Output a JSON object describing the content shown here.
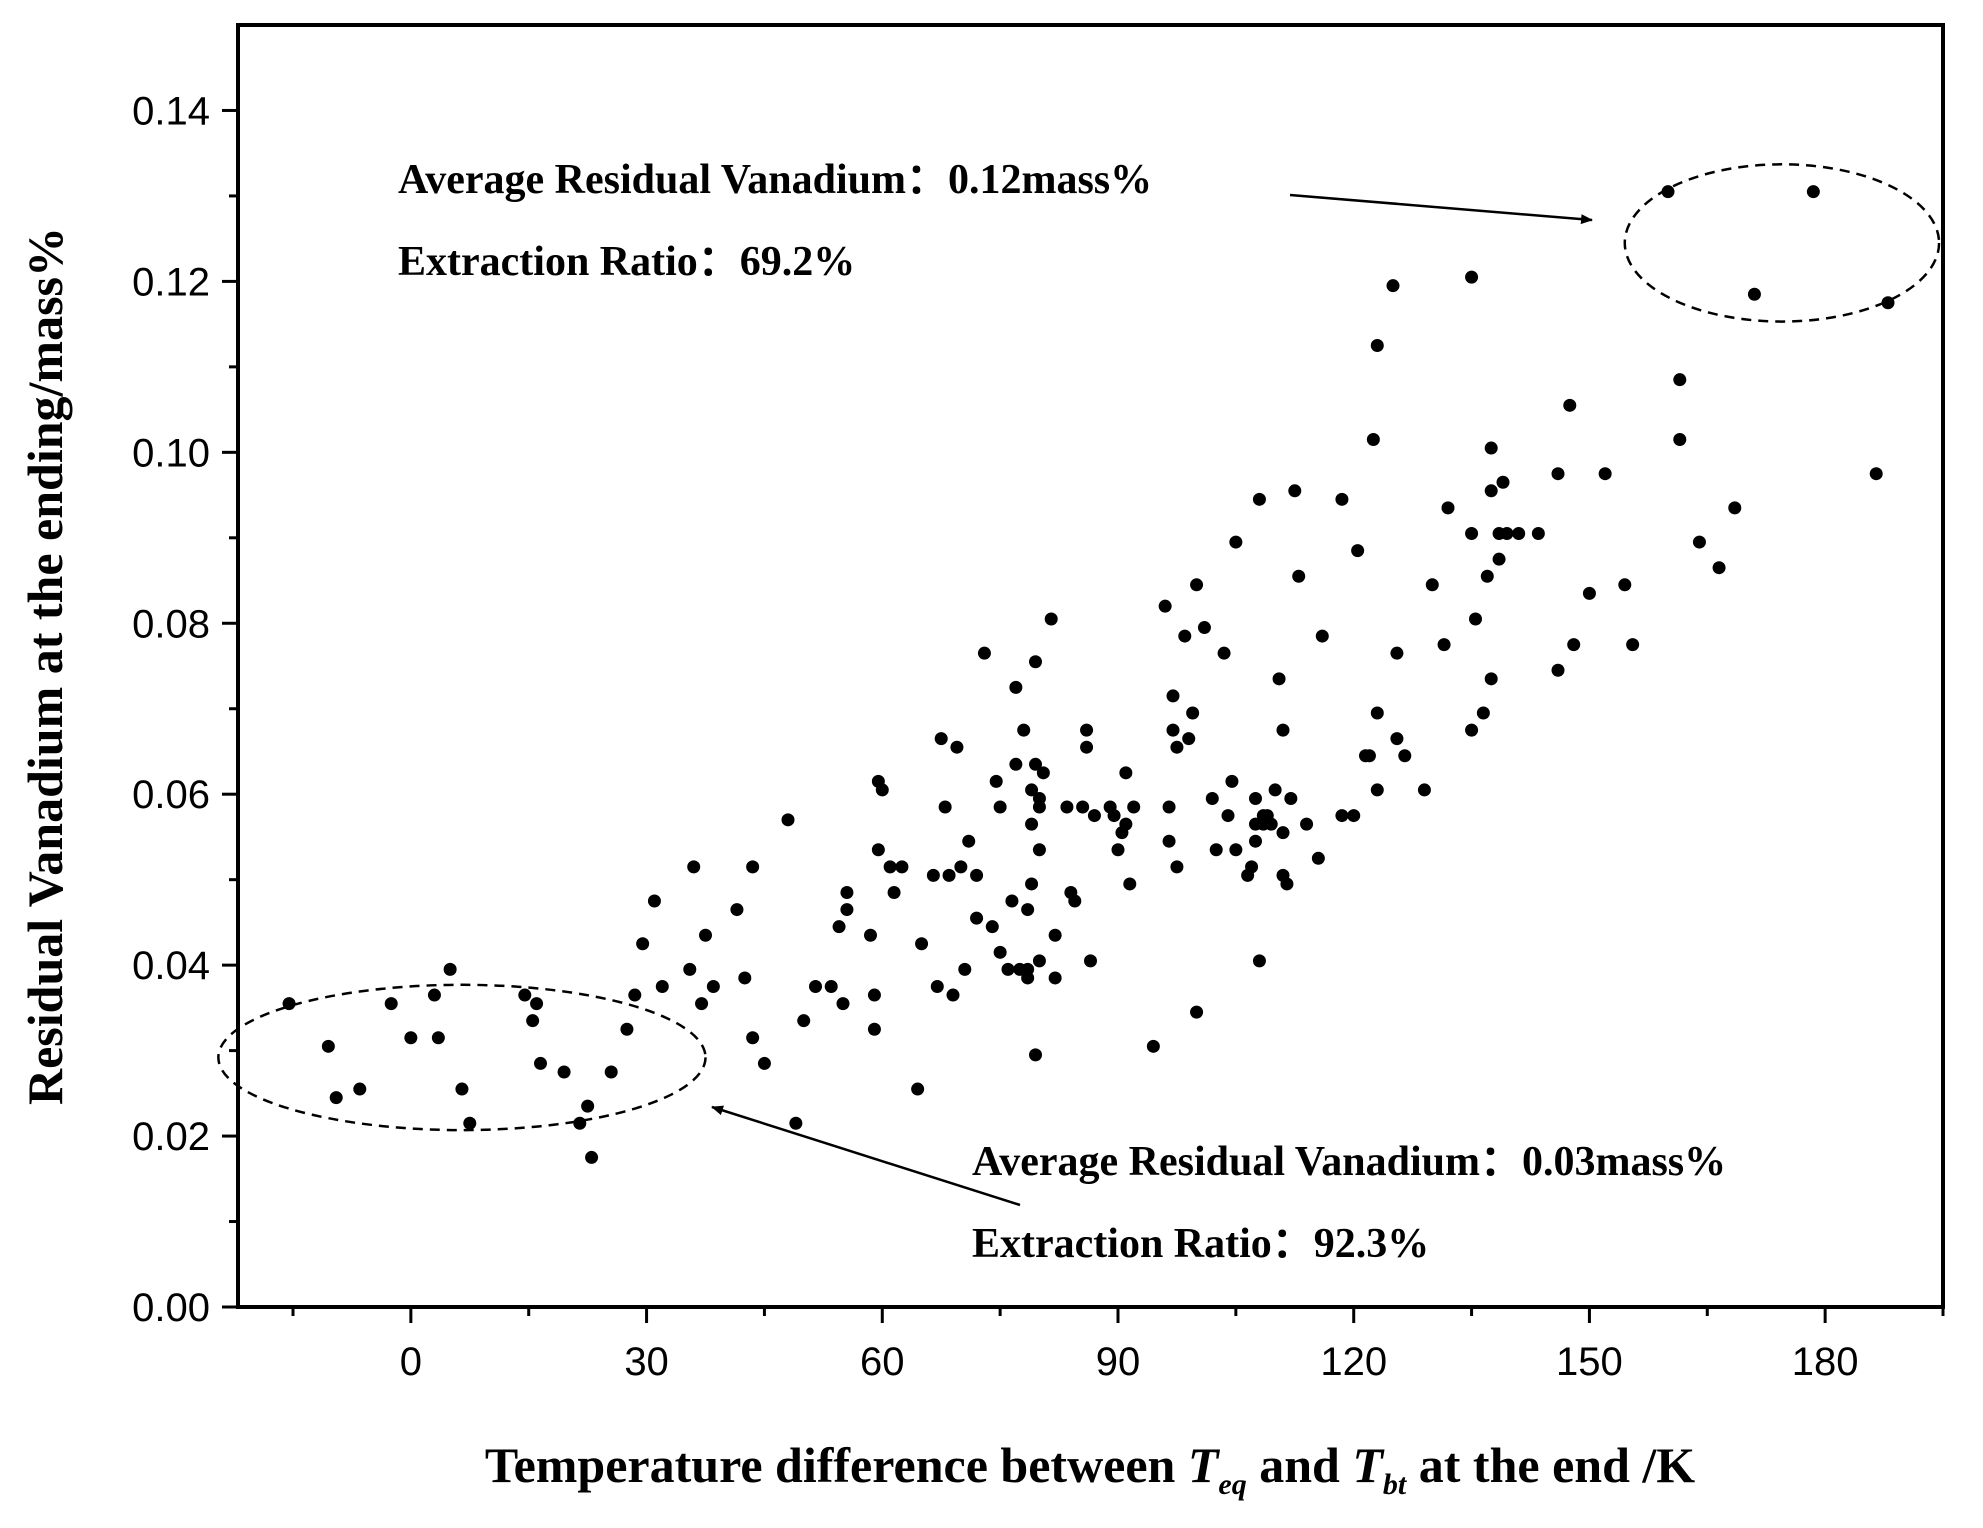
{
  "chart_data": {
    "type": "scatter",
    "title": "",
    "xlabel": {
      "prefix": "Temperature difference between ",
      "var1": "T",
      "sub1": "eq",
      "middle": " and ",
      "var2": "T",
      "sub2": "bt",
      "suffix": " at the end /K"
    },
    "ylabel": "Residual Vanadium at the ending/mass%",
    "xlim": [
      -22,
      195
    ],
    "ylim": [
      0,
      0.15
    ],
    "xticks": [
      0,
      30,
      60,
      90,
      120,
      150,
      180
    ],
    "yticks": [
      0.0,
      0.02,
      0.04,
      0.06,
      0.08,
      0.1,
      0.12,
      0.14
    ],
    "xtick_labels": [
      "0",
      "30",
      "60",
      "90",
      "120",
      "150",
      "180"
    ],
    "ytick_labels": [
      "0.00",
      "0.02",
      "0.04",
      "0.06",
      "0.08",
      "0.10",
      "0.12",
      "0.14"
    ],
    "grid": false,
    "series": [
      {
        "name": "data",
        "color": "#000000",
        "points": [
          [
            -15.5,
            0.0355
          ],
          [
            -10.5,
            0.0305
          ],
          [
            -9.5,
            0.0245
          ],
          [
            -6.5,
            0.0255
          ],
          [
            -2.5,
            0.0355
          ],
          [
            0,
            0.0315
          ],
          [
            3,
            0.0365
          ],
          [
            3.5,
            0.0315
          ],
          [
            5,
            0.0395
          ],
          [
            6.5,
            0.0255
          ],
          [
            7.5,
            0.0215
          ],
          [
            14.5,
            0.0365
          ],
          [
            15.5,
            0.0335
          ],
          [
            16,
            0.0355
          ],
          [
            16.5,
            0.0285
          ],
          [
            19.5,
            0.0275
          ],
          [
            21.5,
            0.0215
          ],
          [
            22.5,
            0.0235
          ],
          [
            23,
            0.0175
          ],
          [
            25.5,
            0.0275
          ],
          [
            27.5,
            0.0325
          ],
          [
            28.5,
            0.0365
          ],
          [
            29.5,
            0.0425
          ],
          [
            31,
            0.0475
          ],
          [
            32,
            0.0375
          ],
          [
            35.5,
            0.0395
          ],
          [
            36,
            0.0515
          ],
          [
            37,
            0.0355
          ],
          [
            37.5,
            0.0435
          ],
          [
            38.5,
            0.0375
          ],
          [
            41.5,
            0.0465
          ],
          [
            42.5,
            0.0385
          ],
          [
            43.5,
            0.0315
          ],
          [
            43.5,
            0.0515
          ],
          [
            45,
            0.0285
          ],
          [
            48,
            0.057
          ],
          [
            49,
            0.0215
          ],
          [
            50,
            0.0335
          ],
          [
            51.5,
            0.0375
          ],
          [
            53.5,
            0.0375
          ],
          [
            54.5,
            0.0445
          ],
          [
            55,
            0.0355
          ],
          [
            55.5,
            0.0485
          ],
          [
            55.5,
            0.0465
          ],
          [
            58.5,
            0.0435
          ],
          [
            59,
            0.0365
          ],
          [
            59,
            0.0325
          ],
          [
            59.5,
            0.0535
          ],
          [
            59.5,
            0.0615
          ],
          [
            60,
            0.0605
          ],
          [
            61,
            0.0515
          ],
          [
            61.5,
            0.0485
          ],
          [
            62.5,
            0.0515
          ],
          [
            64.5,
            0.0255
          ],
          [
            65,
            0.0425
          ],
          [
            66.5,
            0.0505
          ],
          [
            67,
            0.0375
          ],
          [
            67.5,
            0.0665
          ],
          [
            68,
            0.0585
          ],
          [
            68.5,
            0.0505
          ],
          [
            69,
            0.0365
          ],
          [
            69.5,
            0.0655
          ],
          [
            70,
            0.0515
          ],
          [
            70.5,
            0.0395
          ],
          [
            71,
            0.0545
          ],
          [
            72,
            0.0505
          ],
          [
            72,
            0.0455
          ],
          [
            73,
            0.0765
          ],
          [
            74,
            0.0445
          ],
          [
            74.5,
            0.0615
          ],
          [
            75,
            0.0415
          ],
          [
            75,
            0.0585
          ],
          [
            76,
            0.0395
          ],
          [
            76.5,
            0.0475
          ],
          [
            77,
            0.0725
          ],
          [
            77,
            0.0635
          ],
          [
            77.5,
            0.0395
          ],
          [
            78,
            0.0675
          ],
          [
            78.5,
            0.0385
          ],
          [
            78.5,
            0.0465
          ],
          [
            78.5,
            0.0395
          ],
          [
            79,
            0.0495
          ],
          [
            79,
            0.0605
          ],
          [
            79,
            0.0565
          ],
          [
            79.5,
            0.0295
          ],
          [
            79.5,
            0.0635
          ],
          [
            79.5,
            0.0755
          ],
          [
            80,
            0.0535
          ],
          [
            80,
            0.0585
          ],
          [
            80,
            0.0405
          ],
          [
            80,
            0.0595
          ],
          [
            80.5,
            0.0625
          ],
          [
            81.5,
            0.0805
          ],
          [
            82,
            0.0435
          ],
          [
            82,
            0.0385
          ],
          [
            83.5,
            0.0585
          ],
          [
            84,
            0.0485
          ],
          [
            84.5,
            0.0475
          ],
          [
            85.5,
            0.0585
          ],
          [
            86,
            0.0655
          ],
          [
            86,
            0.0675
          ],
          [
            86.5,
            0.0405
          ],
          [
            87,
            0.0575
          ],
          [
            89,
            0.0585
          ],
          [
            89.5,
            0.0575
          ],
          [
            90,
            0.0535
          ],
          [
            90.5,
            0.0555
          ],
          [
            91,
            0.0565
          ],
          [
            91,
            0.0625
          ],
          [
            91.5,
            0.0495
          ],
          [
            92,
            0.0585
          ],
          [
            94.5,
            0.0305
          ],
          [
            96,
            0.082
          ],
          [
            96.5,
            0.0585
          ],
          [
            96.5,
            0.0545
          ],
          [
            97,
            0.0715
          ],
          [
            97,
            0.0675
          ],
          [
            97.5,
            0.0515
          ],
          [
            97.5,
            0.0655
          ],
          [
            98.5,
            0.0785
          ],
          [
            99,
            0.0665
          ],
          [
            99.5,
            0.0695
          ],
          [
            100,
            0.0345
          ],
          [
            100,
            0.0845
          ],
          [
            101,
            0.0795
          ],
          [
            102,
            0.0595
          ],
          [
            102.5,
            0.0535
          ],
          [
            103.5,
            0.0765
          ],
          [
            104,
            0.0575
          ],
          [
            104.5,
            0.0615
          ],
          [
            105,
            0.0895
          ],
          [
            105,
            0.0535
          ],
          [
            106.5,
            0.0505
          ],
          [
            107,
            0.0515
          ],
          [
            107.5,
            0.0565
          ],
          [
            107.5,
            0.0545
          ],
          [
            107.5,
            0.0595
          ],
          [
            108,
            0.0945
          ],
          [
            108,
            0.0405
          ],
          [
            108.5,
            0.0565
          ],
          [
            108.5,
            0.0575
          ],
          [
            109,
            0.0575
          ],
          [
            109.5,
            0.0565
          ],
          [
            110,
            0.0605
          ],
          [
            110.5,
            0.0735
          ],
          [
            111,
            0.0555
          ],
          [
            111,
            0.0675
          ],
          [
            111,
            0.0505
          ],
          [
            111.5,
            0.0495
          ],
          [
            112,
            0.0595
          ],
          [
            112.5,
            0.0955
          ],
          [
            113,
            0.0855
          ],
          [
            114,
            0.0565
          ],
          [
            115.5,
            0.0525
          ],
          [
            116,
            0.0785
          ],
          [
            118.5,
            0.0945
          ],
          [
            118.5,
            0.0575
          ],
          [
            120,
            0.0575
          ],
          [
            120.5,
            0.0885
          ],
          [
            121.5,
            0.0645
          ],
          [
            122,
            0.0645
          ],
          [
            122.5,
            0.1015
          ],
          [
            123,
            0.1125
          ],
          [
            123,
            0.0605
          ],
          [
            123,
            0.0695
          ],
          [
            125,
            0.1195
          ],
          [
            125.5,
            0.0665
          ],
          [
            125.5,
            0.0765
          ],
          [
            126.5,
            0.0645
          ],
          [
            129,
            0.0605
          ],
          [
            130,
            0.0845
          ],
          [
            131.5,
            0.0775
          ],
          [
            132,
            0.0935
          ],
          [
            135,
            0.1205
          ],
          [
            135,
            0.0905
          ],
          [
            135,
            0.0675
          ],
          [
            135.5,
            0.0805
          ],
          [
            136.5,
            0.0695
          ],
          [
            137,
            0.0855
          ],
          [
            137.5,
            0.0955
          ],
          [
            137.5,
            0.1005
          ],
          [
            137.5,
            0.0735
          ],
          [
            138.5,
            0.0875
          ],
          [
            138.5,
            0.0905
          ],
          [
            139,
            0.0965
          ],
          [
            139.5,
            0.0905
          ],
          [
            141,
            0.0905
          ],
          [
            143.5,
            0.0905
          ],
          [
            146,
            0.0975
          ],
          [
            146,
            0.0745
          ],
          [
            147.5,
            0.1055
          ],
          [
            148,
            0.0775
          ],
          [
            150,
            0.0835
          ],
          [
            152,
            0.0975
          ],
          [
            154.5,
            0.0845
          ],
          [
            155.5,
            0.0775
          ],
          [
            160,
            0.1305
          ],
          [
            161.5,
            0.1015
          ],
          [
            161.5,
            0.1085
          ],
          [
            164,
            0.0895
          ],
          [
            166.5,
            0.0865
          ],
          [
            168.5,
            0.0935
          ],
          [
            171,
            0.1185
          ],
          [
            178.5,
            0.1305
          ],
          [
            186.5,
            0.0975
          ],
          [
            188,
            0.1175
          ]
        ]
      }
    ],
    "annotations": [
      {
        "id": "top",
        "line1": "Average Residual Vanadium：0.12mass%",
        "line2": "Extraction Ratio：69.2%"
      },
      {
        "id": "bottom",
        "line1": "Average Residual Vanadium：0.03mass%",
        "line2": "Extraction Ratio：92.3%"
      }
    ],
    "highlight_regions": [
      {
        "name": "low-temperature-cluster",
        "x_center": 6.5,
        "y_center": 0.0292,
        "x_radius": 31,
        "y_radius": 0.0085
      },
      {
        "name": "high-temperature-cluster",
        "x_center": 174.5,
        "y_center": 0.1245,
        "x_radius": 20,
        "y_radius": 0.0092
      }
    ]
  }
}
